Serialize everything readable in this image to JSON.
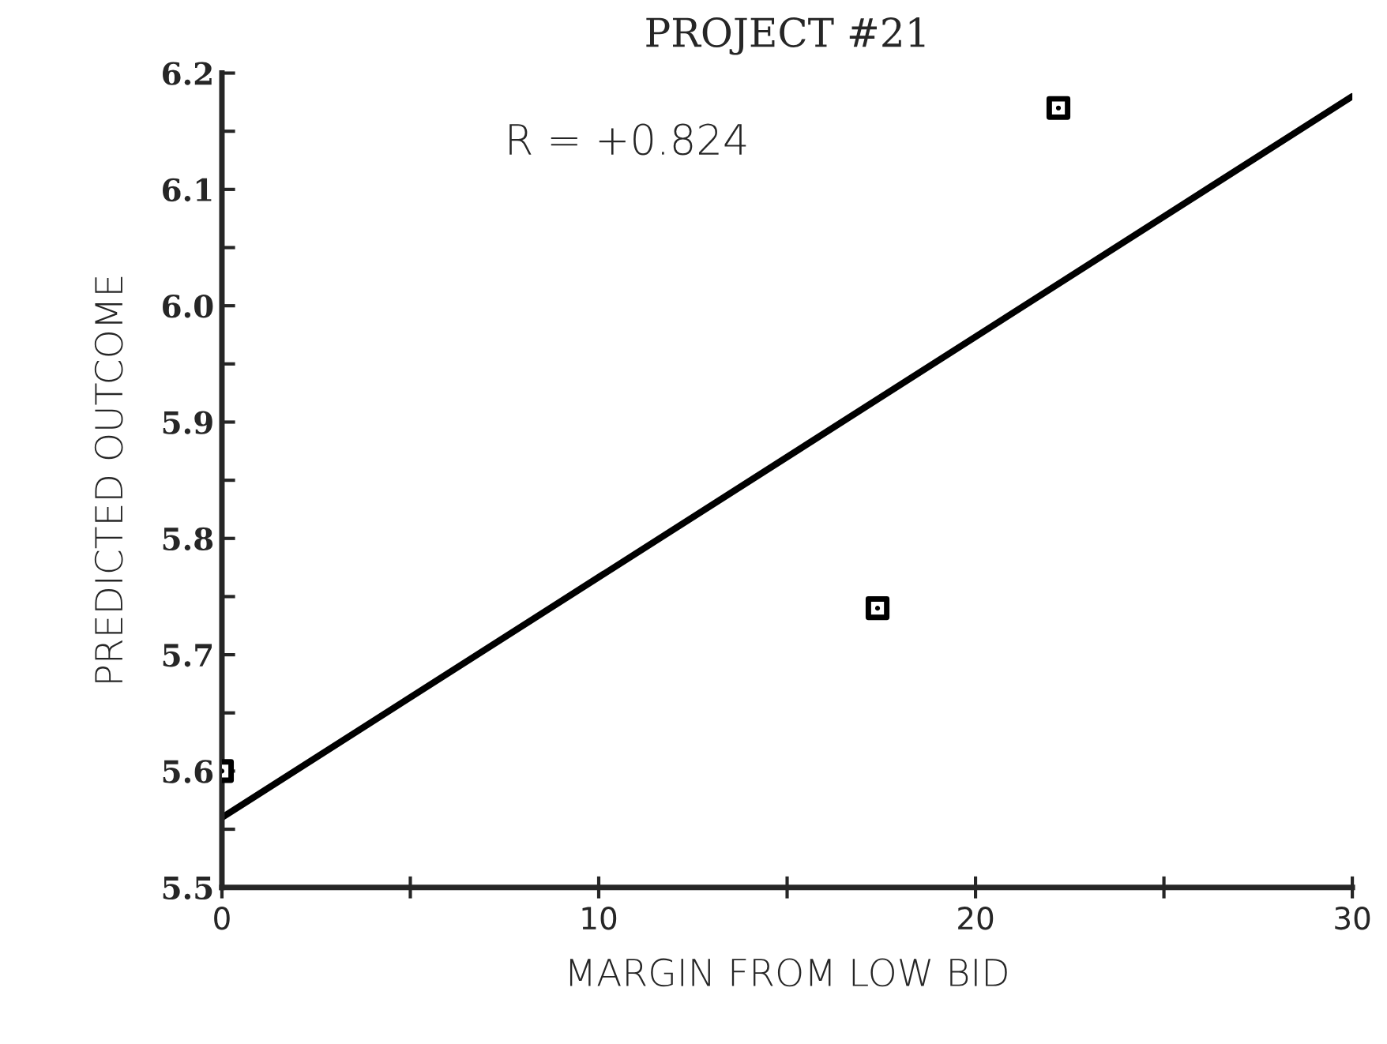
{
  "chart_data": {
    "type": "scatter",
    "title": "PROJECT #21",
    "xlabel": "MARGIN FROM LOW BID",
    "ylabel": "PREDICTED OUTCOME",
    "annotations": [
      "R = +0.824"
    ],
    "series": [
      {
        "color": "#000000",
        "marker": "square",
        "x": [
          0,
          17.4,
          22.2
        ],
        "values": [
          5.6,
          5.74,
          6.17
        ]
      },
      {
        "type": "line",
        "color": "#000000",
        "marker": "none",
        "line_style": "solid",
        "x": [
          0,
          30
        ],
        "values": [
          5.56,
          6.18
        ]
      }
    ],
    "xlim": [
      0,
      30
    ],
    "ylim": [
      5.5,
      6.2
    ],
    "xticks": [
      0,
      {
        "value": 5,
        "label": null
      },
      10,
      {
        "value": 15,
        "label": null
      },
      20,
      {
        "value": 25,
        "label": null
      },
      30
    ],
    "yticks": [
      5.5,
      {
        "value": 5.55,
        "label": null
      },
      5.6,
      {
        "value": 5.65,
        "label": null
      },
      5.7,
      {
        "value": 5.75,
        "label": null
      },
      5.8,
      {
        "value": 5.85,
        "label": null
      },
      5.9,
      {
        "value": 5.95,
        "label": null
      },
      "6.0",
      {
        "value": 6.05,
        "label": null
      },
      6.1,
      {
        "value": 6.15,
        "label": null
      },
      6.2
    ],
    "grid": false,
    "legend": false
  }
}
